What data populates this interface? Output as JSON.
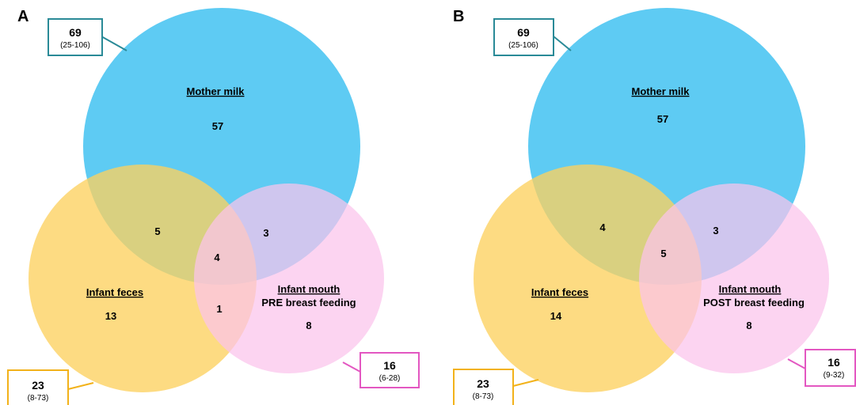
{
  "colors": {
    "mother_milk": "#5ecbf3",
    "infant_feces": "#fdd15f",
    "infant_mouth": "#fbc4ec",
    "box_milk": "#2a8a97",
    "box_feces": "#f2b21a",
    "box_mouth": "#e357c1"
  },
  "panels": [
    {
      "letter": "A",
      "milk_label": "Mother milk",
      "milk_only": "57",
      "feces_label": "Infant feces",
      "feces_only": "13",
      "mouth_label": "Infant mouth",
      "mouth_sublabel": "PRE breast feeding",
      "mouth_only": "8",
      "milk_feces": "5",
      "milk_mouth": "3",
      "all_three": "4",
      "feces_mouth": "1",
      "milk_box": {
        "total": "69",
        "range": "(25-106)"
      },
      "feces_box": {
        "total": "23",
        "range": "(8-73)"
      },
      "mouth_box": {
        "total": "16",
        "range": "(6-28)"
      }
    },
    {
      "letter": "B",
      "milk_label": "Mother milk",
      "milk_only": "57",
      "feces_label": "Infant feces",
      "feces_only": "14",
      "mouth_label": "Infant mouth",
      "mouth_sublabel": "POST breast feeding",
      "mouth_only": "8",
      "milk_feces": "4",
      "milk_mouth": "3",
      "all_three": "5",
      "feces_mouth": "",
      "milk_box": {
        "total": "69",
        "range": "(25-106)"
      },
      "feces_box": {
        "total": "23",
        "range": "(8-73)"
      },
      "mouth_box": {
        "total": "16",
        "range": "(9-32)"
      }
    }
  ]
}
